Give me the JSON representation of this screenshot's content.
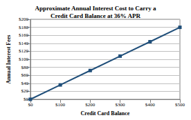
{
  "chart_data": {
    "type": "line",
    "title": "Approximate Annual Interest Cost to Carry a\nCredit Card Balance at 36% APR",
    "x_label": "Credit Card Balance",
    "y_label": "Annual Interest Fees",
    "categories": [
      "$0",
      "$100",
      "$200",
      "$300",
      "$400",
      "$500"
    ],
    "values": [
      0,
      36,
      72,
      108,
      144,
      180
    ],
    "color": "#1f4e79",
    "marker": "square",
    "line_style": "solid",
    "ylim": [
      0,
      200
    ],
    "yticks": [
      {
        "value": 0,
        "label": "$0"
      },
      {
        "value": 20,
        "label": "$20"
      },
      {
        "value": 40,
        "label": "$40"
      },
      {
        "value": 60,
        "label": "$60"
      },
      {
        "value": 80,
        "label": "$80"
      },
      {
        "value": 100,
        "label": "$100"
      },
      {
        "value": 120,
        "label": "$120"
      },
      {
        "value": 140,
        "label": "$140"
      },
      {
        "value": 160,
        "label": "$160"
      },
      {
        "value": 180,
        "label": "$180"
      },
      {
        "value": 200,
        "label": "$200"
      }
    ],
    "grid": true
  }
}
